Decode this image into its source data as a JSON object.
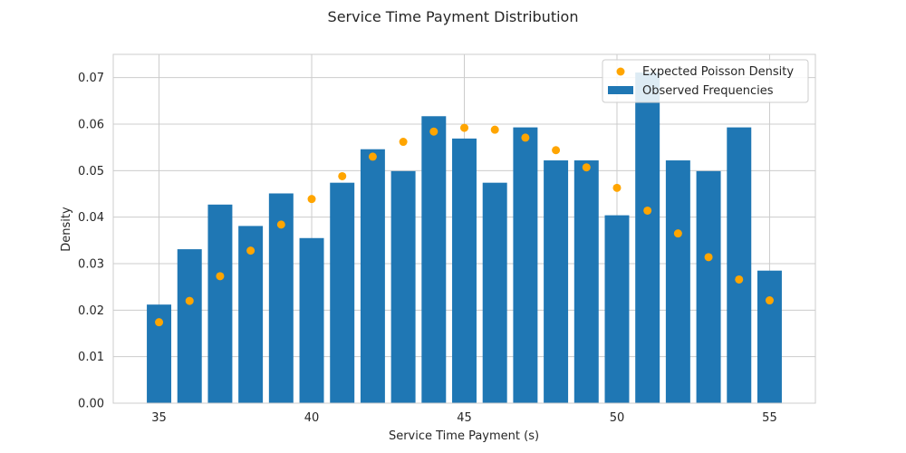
{
  "chart_data": {
    "type": "bar",
    "title": "Service Time Payment Distribution",
    "xlabel": "Service Time Payment (s)",
    "ylabel": "Density",
    "xlim": [
      33.5,
      56.5
    ],
    "ylim": [
      0,
      0.075
    ],
    "xticks": [
      35,
      40,
      45,
      50,
      55
    ],
    "yticks": [
      0.0,
      0.01,
      0.02,
      0.03,
      0.04,
      0.05,
      0.06,
      0.07
    ],
    "ytick_labels": [
      "0.00",
      "0.01",
      "0.02",
      "0.03",
      "0.04",
      "0.05",
      "0.06",
      "0.07"
    ],
    "grid": true,
    "legend_position": "top-right",
    "x": [
      35,
      36,
      37,
      38,
      39,
      40,
      41,
      42,
      43,
      44,
      45,
      46,
      47,
      48,
      49,
      50,
      51,
      52,
      53,
      54,
      55
    ],
    "series": [
      {
        "name": "Observed Frequencies",
        "kind": "bar",
        "color": "#1f77b4",
        "values": [
          0.0212,
          0.0331,
          0.0427,
          0.0381,
          0.0451,
          0.0355,
          0.0474,
          0.0546,
          0.0499,
          0.0617,
          0.0569,
          0.0474,
          0.0593,
          0.0522,
          0.0522,
          0.0404,
          0.0711,
          0.0522,
          0.0499,
          0.0593,
          0.0285
        ]
      },
      {
        "name": "Expected Poisson Density",
        "kind": "scatter",
        "color": "#ffa500",
        "values": [
          0.0174,
          0.022,
          0.0273,
          0.0328,
          0.0384,
          0.0439,
          0.0488,
          0.053,
          0.0562,
          0.0584,
          0.0592,
          0.0588,
          0.0571,
          0.0544,
          0.0507,
          0.0463,
          0.0414,
          0.0365,
          0.0314,
          0.0266,
          0.0221
        ]
      }
    ],
    "legend_order": [
      "Expected Poisson Density",
      "Observed Frequencies"
    ]
  }
}
